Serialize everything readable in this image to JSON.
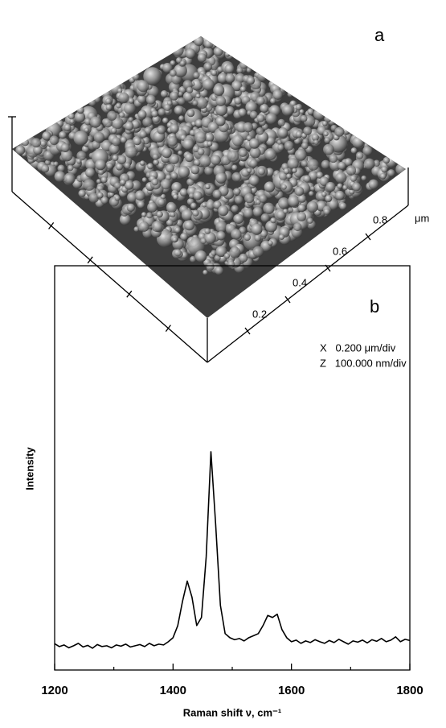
{
  "chart_data": [
    {
      "type": "surface",
      "panel_label": "a",
      "xlim": [
        0,
        1
      ],
      "xticks": [
        0.2,
        0.4,
        0.6,
        0.8
      ],
      "unit": "μm",
      "scale_lines": [
        "X   0.200 μm/div",
        "Z   100.000 nm/div"
      ],
      "color": "#8a8a8a"
    },
    {
      "type": "line",
      "panel_label": "b",
      "xlabel": "Raman shift ν, cm⁻¹",
      "ylabel": "Intensity",
      "xlim": [
        1200,
        1800
      ],
      "xticks": [
        1200,
        1400,
        1600,
        1800
      ],
      "ylim": [
        0,
        10
      ],
      "color": "#000000",
      "x": [
        1200,
        1208,
        1216,
        1224,
        1232,
        1240,
        1248,
        1256,
        1264,
        1272,
        1280,
        1288,
        1296,
        1304,
        1312,
        1320,
        1328,
        1336,
        1344,
        1352,
        1360,
        1368,
        1376,
        1384,
        1392,
        1400,
        1408,
        1416,
        1424,
        1432,
        1440,
        1448,
        1456,
        1464,
        1472,
        1480,
        1488,
        1496,
        1504,
        1512,
        1520,
        1528,
        1536,
        1544,
        1552,
        1560,
        1568,
        1576,
        1584,
        1592,
        1600,
        1608,
        1616,
        1624,
        1632,
        1640,
        1648,
        1656,
        1664,
        1672,
        1680,
        1688,
        1696,
        1704,
        1712,
        1720,
        1728,
        1736,
        1744,
        1752,
        1760,
        1768,
        1776,
        1784,
        1792,
        1800
      ],
      "values": [
        0.65,
        0.58,
        0.62,
        0.55,
        0.6,
        0.66,
        0.57,
        0.61,
        0.54,
        0.63,
        0.58,
        0.6,
        0.55,
        0.62,
        0.59,
        0.64,
        0.57,
        0.6,
        0.63,
        0.58,
        0.66,
        0.6,
        0.64,
        0.62,
        0.7,
        0.8,
        1.1,
        1.7,
        2.2,
        1.8,
        1.1,
        1.3,
        2.8,
        5.4,
        3.6,
        1.6,
        0.9,
        0.8,
        0.75,
        0.78,
        0.72,
        0.8,
        0.85,
        0.9,
        1.1,
        1.35,
        1.3,
        1.38,
        1.0,
        0.8,
        0.7,
        0.74,
        0.66,
        0.72,
        0.68,
        0.75,
        0.7,
        0.66,
        0.73,
        0.68,
        0.76,
        0.7,
        0.64,
        0.72,
        0.69,
        0.74,
        0.67,
        0.75,
        0.71,
        0.78,
        0.7,
        0.74,
        0.82,
        0.7,
        0.76,
        0.73
      ]
    }
  ]
}
